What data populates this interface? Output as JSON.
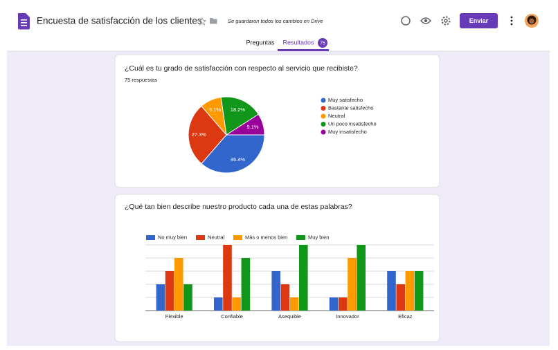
{
  "header": {
    "title": "Encuesta de satisfacción de los clientes",
    "saved_status": "Se guardaron todos los cambios en Drive",
    "send_button": "Enviar"
  },
  "tabs": [
    {
      "label": "Preguntas"
    },
    {
      "label": "Resultados",
      "badge": 75
    }
  ],
  "cards": [
    {
      "question": "¿Cuál es tu grado de satisfacción con respecto al servicio que recibiste?",
      "responses": "75 respuestas",
      "chart": {
        "type": "pie",
        "categories": [
          "Muy satisfecho",
          "Bastante satisfecho",
          "Neutral",
          "Un poco insatisfecho",
          "Muy insatisfecho"
        ],
        "values": [
          36.4,
          27.3,
          9.1,
          18.2,
          9.1
        ],
        "value_labels": [
          "36.4%",
          "27.3%",
          "9.1%",
          "18.2%",
          "9.1%"
        ],
        "colors": [
          "#3366cc",
          "#dc3912",
          "#ff9900",
          "#109618",
          "#990099"
        ]
      }
    },
    {
      "question": "¿Qué tan bien describe nuestro producto cada una de estas palabras?",
      "chart": {
        "type": "bar",
        "categories": [
          "Flexible",
          "Confiable",
          "Asequible",
          "Innovador",
          "Eficaz"
        ],
        "series": [
          {
            "name": "No muy bien",
            "color": "#3366cc",
            "values": [
              2,
              1,
              3,
              1,
              3
            ]
          },
          {
            "name": "Neutral",
            "color": "#dc3912",
            "values": [
              3,
              5,
              2,
              1,
              2
            ]
          },
          {
            "name": "Más o menos bien",
            "color": "#ff9900",
            "values": [
              4,
              1,
              1,
              4,
              3
            ]
          },
          {
            "name": "Muy bien",
            "color": "#109618",
            "values": [
              2,
              4,
              5,
              5,
              3
            ]
          }
        ],
        "ylim": [
          0,
          5
        ],
        "yticks": [
          0,
          1,
          2,
          3,
          4,
          5
        ],
        "grid": true
      }
    }
  ]
}
